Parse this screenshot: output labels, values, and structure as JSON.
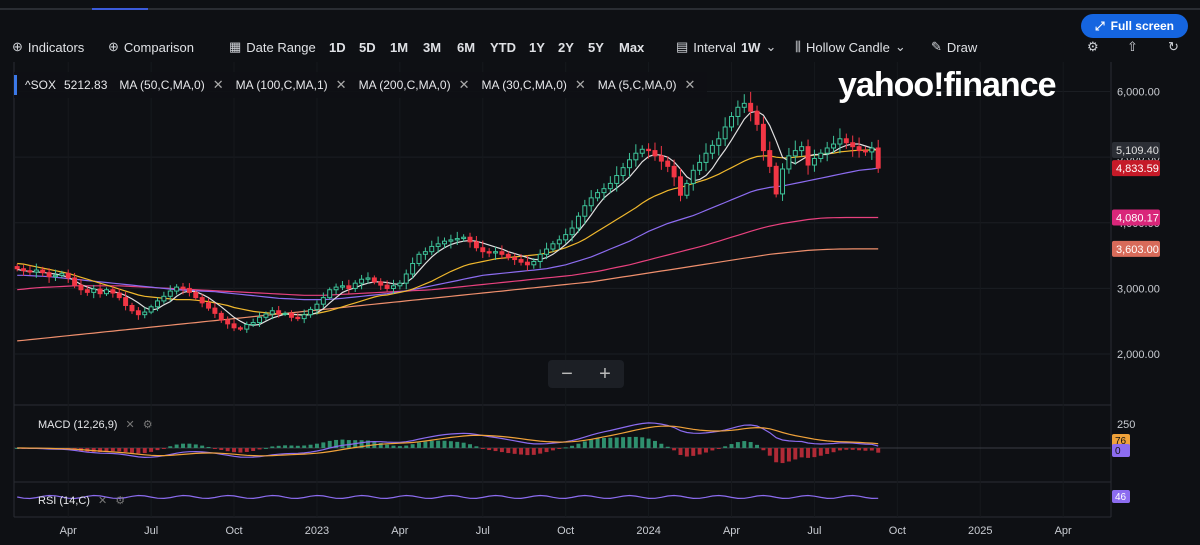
{
  "toolbar": {
    "indicators": "Indicators",
    "comparison": "Comparison",
    "date_range": "Date Range",
    "ranges": [
      "1D",
      "5D",
      "1M",
      "3M",
      "6M",
      "YTD",
      "1Y",
      "2Y",
      "5Y",
      "Max"
    ],
    "interval_label": "Interval",
    "interval_value": "1W",
    "candle_type": "Hollow Candle",
    "draw": "Draw",
    "full_screen": "Full screen"
  },
  "logo": "yahoo!finance",
  "legend": {
    "symbol": "^SOX",
    "price": "5212.83",
    "studies": [
      "MA (50,C,MA,0)",
      "MA (100,C,MA,1)",
      "MA (200,C,MA,0)",
      "MA (30,C,MA,0)",
      "MA (5,C,MA,0)"
    ]
  },
  "macd_label": "MACD (12,26,9)",
  "rsi_label": "RSI (14,C)",
  "colors": {
    "up": "#3ec49a",
    "down": "#f23645",
    "ma_yellow": "#f0b82d",
    "ma_purple": "#8c6cf0",
    "ma_pink": "#e8417e",
    "ma_salmon": "#ef8f6d",
    "ma_white": "#e0e0e0"
  },
  "chart_data": {
    "type": "candlestick",
    "y_ticks": [
      "6,000.00",
      "5,000.00",
      "4,000.00",
      "3,000.00",
      "2,000.00"
    ],
    "y_tick_values": [
      6000,
      5000,
      4000,
      3000,
      2000
    ],
    "ylim": [
      1300,
      6450
    ],
    "x_ticks": [
      "Apr",
      "Jul",
      "Oct",
      "2023",
      "Apr",
      "Jul",
      "Oct",
      "2024",
      "Apr",
      "Jul",
      "Oct",
      "2025",
      "Apr"
    ],
    "x_tick_weeks": [
      8,
      21,
      34,
      47,
      60,
      73,
      86,
      99,
      112,
      125,
      138,
      151,
      164
    ],
    "price_labels": [
      {
        "text": "5,109.40",
        "value": 5109.4,
        "color": "#e0e0e0",
        "bg": "#2b2e35"
      },
      {
        "text": "4,833.59",
        "value": 4833.59,
        "color": "#ffffff",
        "bg": "#c51a28"
      },
      {
        "text": "4,080.17",
        "value": 4080.17,
        "color": "#ffffff",
        "bg": "#d9267a"
      },
      {
        "text": "3,603.00",
        "value": 3603,
        "color": "#ffffff",
        "bg": "#d86b5a"
      }
    ],
    "macd_tick": "250",
    "macd_labels": [
      {
        "text": "76",
        "bg": "#f0a23a"
      },
      {
        "text": "0",
        "bg": "#8c6cf0"
      }
    ],
    "rsi_labels": [
      {
        "text": "46",
        "bg": "#8c6cf0"
      }
    ],
    "closes": [
      3300,
      3270,
      3250,
      3280,
      3240,
      3180,
      3200,
      3230,
      3160,
      3050,
      2980,
      2940,
      2990,
      2920,
      2980,
      2930,
      2860,
      2740,
      2660,
      2600,
      2640,
      2720,
      2810,
      2880,
      2960,
      3020,
      3000,
      2940,
      2860,
      2780,
      2700,
      2620,
      2520,
      2460,
      2400,
      2380,
      2450,
      2480,
      2560,
      2610,
      2660,
      2610,
      2620,
      2560,
      2540,
      2600,
      2680,
      2760,
      2860,
      2980,
      3020,
      3040,
      3000,
      3080,
      3140,
      3160,
      3100,
      3050,
      3000,
      3040,
      3080,
      3220,
      3380,
      3520,
      3560,
      3640,
      3680,
      3720,
      3740,
      3760,
      3780,
      3710,
      3620,
      3560,
      3540,
      3560,
      3520,
      3470,
      3440,
      3400,
      3360,
      3410,
      3520,
      3600,
      3680,
      3740,
      3820,
      3920,
      4100,
      4260,
      4380,
      4460,
      4520,
      4600,
      4720,
      4840,
      4960,
      5060,
      5120,
      5100,
      5020,
      4940,
      4860,
      4700,
      4420,
      4600,
      4800,
      4920,
      5060,
      5180,
      5280,
      5460,
      5620,
      5760,
      5820,
      5700,
      5500,
      5100,
      4860,
      4440,
      4820,
      5020,
      5100,
      5160,
      4880,
      4980,
      5060,
      5140,
      5200,
      5280,
      5220,
      5160,
      5100,
      5080,
      5140,
      4833.59
    ],
    "ma5": [
      3290,
      3270,
      3260,
      3250,
      3245,
      3230,
      3220,
      3200,
      3170,
      3120,
      3060,
      3020,
      2990,
      2970,
      2960,
      2950,
      2930,
      2890,
      2840,
      2780,
      2710,
      2670,
      2690,
      2750,
      2800,
      2880,
      2940,
      2960,
      2950,
      2910,
      2860,
      2790,
      2720,
      2640,
      2560,
      2500,
      2450,
      2440,
      2450,
      2500,
      2550,
      2580,
      2610,
      2610,
      2600,
      2590,
      2600,
      2630,
      2690,
      2780,
      2860,
      2940,
      2980,
      3010,
      3050,
      3080,
      3100,
      3100,
      3090,
      3070,
      3060,
      3090,
      3160,
      3270,
      3380,
      3480,
      3560,
      3620,
      3670,
      3700,
      3720,
      3730,
      3720,
      3690,
      3660,
      3630,
      3600,
      3560,
      3530,
      3500,
      3470,
      3440,
      3440,
      3470,
      3520,
      3590,
      3670,
      3760,
      3870,
      3990,
      4120,
      4260,
      4380,
      4460,
      4530,
      4610,
      4700,
      4810,
      4930,
      5010,
      5040,
      5030,
      5000,
      4930,
      4820,
      4700,
      4640,
      4660,
      4720,
      4830,
      4980,
      5110,
      5260,
      5420,
      5580,
      5680,
      5700,
      5640,
      5480,
      5250,
      5000,
      4940,
      4900,
      4960,
      5020,
      5040,
      5040,
      5040,
      5080,
      5140,
      5180,
      5200,
      5200,
      5170,
      5140,
      5100
    ],
    "ma30": [
      3380,
      3370,
      3350,
      3330,
      3310,
      3290,
      3270,
      3250,
      3230,
      3200,
      3170,
      3140,
      3110,
      3080,
      3050,
      3020,
      2990,
      2960,
      2930,
      2900,
      2880,
      2870,
      2860,
      2850,
      2840,
      2830,
      2830,
      2830,
      2820,
      2810,
      2800,
      2780,
      2760,
      2740,
      2710,
      2690,
      2670,
      2650,
      2640,
      2630,
      2620,
      2610,
      2610,
      2600,
      2600,
      2600,
      2610,
      2620,
      2640,
      2660,
      2690,
      2720,
      2750,
      2780,
      2810,
      2840,
      2870,
      2890,
      2900,
      2920,
      2940,
      2960,
      2990,
      3030,
      3070,
      3110,
      3160,
      3210,
      3260,
      3300,
      3340,
      3370,
      3390,
      3410,
      3430,
      3450,
      3460,
      3470,
      3480,
      3490,
      3500,
      3510,
      3520,
      3540,
      3560,
      3590,
      3620,
      3660,
      3700,
      3750,
      3810,
      3870,
      3930,
      3990,
      4050,
      4110,
      4170,
      4230,
      4300,
      4360,
      4410,
      4450,
      4490,
      4520,
      4540,
      4570,
      4600,
      4630,
      4660,
      4700,
      4740,
      4790,
      4840,
      4890,
      4940,
      4980,
      5010,
      5020,
      5020,
      5000,
      4990,
      4990,
      5000,
      5010,
      5020,
      5030,
      5040,
      5050,
      5060,
      5080,
      5090,
      5100,
      5105,
      5108,
      5109,
      5109.4
    ],
    "ma50": [
      3200,
      3200,
      3195,
      3190,
      3185,
      3180,
      3170,
      3160,
      3150,
      3140,
      3130,
      3120,
      3110,
      3100,
      3090,
      3080,
      3070,
      3060,
      3050,
      3040,
      3030,
      3020,
      3010,
      3000,
      2990,
      2980,
      2975,
      2970,
      2965,
      2960,
      2955,
      2950,
      2940,
      2930,
      2920,
      2910,
      2900,
      2890,
      2880,
      2870,
      2860,
      2850,
      2845,
      2840,
      2835,
      2830,
      2830,
      2830,
      2830,
      2835,
      2840,
      2850,
      2860,
      2870,
      2880,
      2890,
      2900,
      2910,
      2920,
      2935,
      2950,
      2965,
      2980,
      3000,
      3020,
      3040,
      3060,
      3080,
      3100,
      3120,
      3140,
      3160,
      3180,
      3200,
      3210,
      3220,
      3230,
      3240,
      3250,
      3260,
      3270,
      3280,
      3290,
      3300,
      3320,
      3340,
      3360,
      3390,
      3420,
      3450,
      3480,
      3520,
      3560,
      3600,
      3640,
      3680,
      3720,
      3770,
      3820,
      3870,
      3910,
      3950,
      3990,
      4020,
      4050,
      4080,
      4110,
      4150,
      4190,
      4230,
      4270,
      4310,
      4350,
      4390,
      4430,
      4470,
      4500,
      4520,
      4540,
      4550,
      4560,
      4580,
      4600,
      4620,
      4640,
      4660,
      4680,
      4700,
      4720,
      4740,
      4760,
      4780,
      4800,
      4810,
      4820,
      4833
    ],
    "ma100": [
      2980,
      2990,
      3000,
      3010,
      3015,
      3020,
      3025,
      3030,
      3035,
      3040,
      3040,
      3040,
      3040,
      3040,
      3040,
      3040,
      3040,
      3035,
      3030,
      3025,
      3020,
      3015,
      3010,
      3005,
      3000,
      2995,
      2990,
      2985,
      2980,
      2975,
      2970,
      2965,
      2960,
      2955,
      2950,
      2945,
      2940,
      2935,
      2930,
      2925,
      2920,
      2915,
      2910,
      2905,
      2900,
      2895,
      2895,
      2895,
      2895,
      2900,
      2905,
      2910,
      2915,
      2920,
      2925,
      2930,
      2935,
      2940,
      2945,
      2950,
      2955,
      2960,
      2965,
      2970,
      2975,
      2980,
      2990,
      3000,
      3010,
      3020,
      3030,
      3040,
      3050,
      3060,
      3070,
      3080,
      3090,
      3100,
      3110,
      3120,
      3130,
      3140,
      3150,
      3160,
      3170,
      3180,
      3190,
      3200,
      3215,
      3230,
      3245,
      3260,
      3280,
      3300,
      3320,
      3340,
      3360,
      3385,
      3410,
      3435,
      3460,
      3485,
      3510,
      3535,
      3560,
      3585,
      3610,
      3635,
      3660,
      3690,
      3720,
      3750,
      3780,
      3810,
      3840,
      3870,
      3900,
      3925,
      3950,
      3970,
      3990,
      4005,
      4020,
      4035,
      4050,
      4060,
      4070,
      4075,
      4078,
      4079,
      4080,
      4080.17,
      4080.17,
      4080.17,
      4080.17,
      4080.17
    ],
    "ma200": [
      2200,
      2210,
      2220,
      2230,
      2240,
      2250,
      2260,
      2270,
      2280,
      2290,
      2300,
      2310,
      2320,
      2330,
      2340,
      2350,
      2360,
      2370,
      2380,
      2390,
      2400,
      2410,
      2420,
      2430,
      2440,
      2450,
      2460,
      2470,
      2480,
      2490,
      2500,
      2510,
      2520,
      2530,
      2540,
      2550,
      2560,
      2570,
      2580,
      2590,
      2600,
      2610,
      2620,
      2630,
      2640,
      2650,
      2660,
      2670,
      2680,
      2690,
      2700,
      2710,
      2720,
      2730,
      2740,
      2750,
      2760,
      2770,
      2780,
      2790,
      2800,
      2810,
      2820,
      2830,
      2840,
      2850,
      2860,
      2870,
      2880,
      2890,
      2900,
      2910,
      2920,
      2930,
      2940,
      2950,
      2960,
      2970,
      2980,
      2990,
      3000,
      3010,
      3020,
      3030,
      3040,
      3050,
      3060,
      3070,
      3080,
      3090,
      3100,
      3115,
      3130,
      3145,
      3160,
      3175,
      3190,
      3205,
      3220,
      3235,
      3250,
      3265,
      3280,
      3295,
      3310,
      3325,
      3340,
      3355,
      3370,
      3385,
      3400,
      3415,
      3430,
      3445,
      3460,
      3475,
      3490,
      3505,
      3520,
      3530,
      3540,
      3550,
      3560,
      3570,
      3580,
      3585,
      3590,
      3595,
      3598,
      3600,
      3601,
      3602,
      3603,
      3603,
      3603,
      3603
    ]
  }
}
